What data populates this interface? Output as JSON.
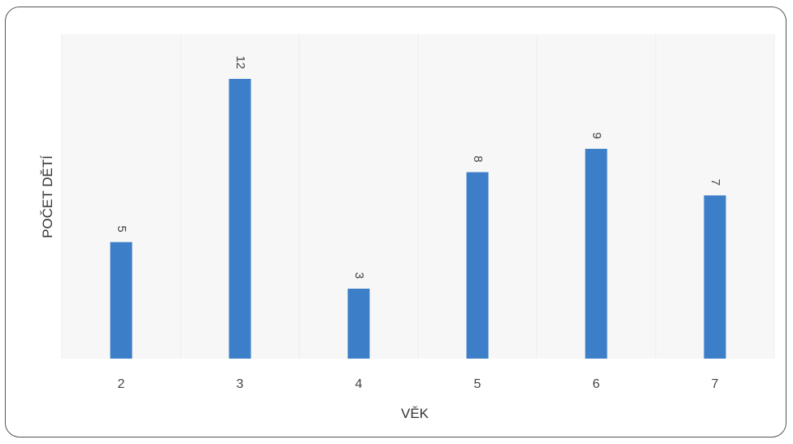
{
  "chart_data": {
    "type": "bar",
    "title": "",
    "xlabel": "VĚK",
    "ylabel": "POČET DĚTÍ",
    "categories": [
      "2",
      "3",
      "4",
      "5",
      "6",
      "7"
    ],
    "values": [
      5,
      12,
      3,
      8,
      9,
      7
    ],
    "data_labels": [
      "5",
      "12",
      "3",
      "8",
      "9",
      "7"
    ],
    "ylim": [
      0,
      12
    ],
    "grid": "vertical-light",
    "legend": "none",
    "bar_color": "#3c7fc8",
    "data_label_rotation": "vertical"
  }
}
